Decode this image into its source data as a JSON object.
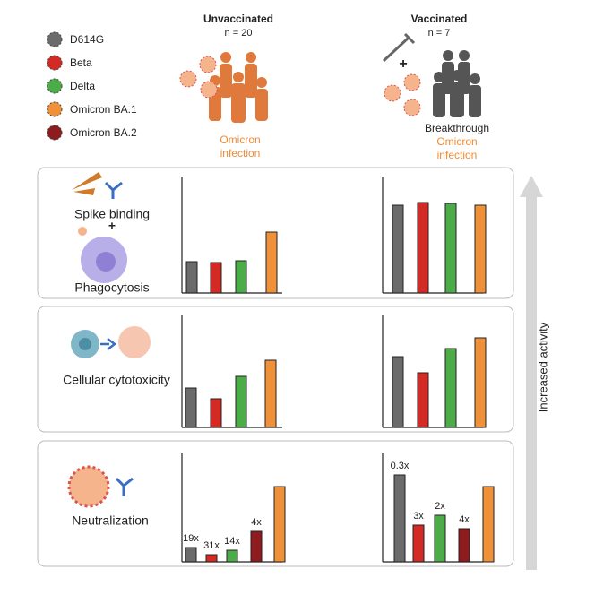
{
  "legend": [
    {
      "label": "D614G",
      "color": "#6b6b6b"
    },
    {
      "label": "Beta",
      "color": "#d42a25"
    },
    {
      "label": "Delta",
      "color": "#4cad48"
    },
    {
      "label": "Omicron BA.1",
      "color": "#f0913a"
    },
    {
      "label": "Omicron BA.2",
      "color": "#8e1b1e"
    }
  ],
  "groups": {
    "unvaccinated": {
      "title": "Unvaccinated",
      "n": "n = 20",
      "infection": [
        "Omicron",
        "infection"
      ]
    },
    "vaccinated": {
      "title": "Vaccinated",
      "n": "n = 7",
      "plus": "+",
      "breakthrough": "Breakthrough",
      "infection": [
        "Omicron",
        "infection"
      ]
    }
  },
  "arrow_label": "Increased activity",
  "panels": [
    {
      "label": [
        "Spike binding",
        "+",
        "Phagocytosis"
      ],
      "charts": [
        {
          "values": [
            35,
            34,
            36,
            68
          ],
          "colors": [
            "#6b6b6b",
            "#d42a25",
            "#4cad48",
            "#f0913a"
          ]
        },
        {
          "values": [
            98,
            101,
            100,
            98
          ],
          "colors": [
            "#6b6b6b",
            "#d42a25",
            "#4cad48",
            "#f0913a"
          ]
        }
      ]
    },
    {
      "label": [
        "Cellular cytotoxicity"
      ],
      "charts": [
        {
          "values": [
            44,
            32,
            57,
            75
          ],
          "colors": [
            "#6b6b6b",
            "#d42a25",
            "#4cad48",
            "#f0913a"
          ]
        },
        {
          "values": [
            79,
            61,
            88,
            100
          ],
          "colors": [
            "#6b6b6b",
            "#d42a25",
            "#4cad48",
            "#f0913a"
          ]
        }
      ]
    },
    {
      "label": [
        "Neutralization"
      ],
      "charts": [
        {
          "values": [
            16,
            8,
            13,
            34,
            84
          ],
          "colors": [
            "#6b6b6b",
            "#d42a25",
            "#4cad48",
            "#8e1b1e",
            "#f0913a"
          ],
          "value_labels": [
            "19x",
            "31x",
            "14x",
            "4x",
            null
          ]
        },
        {
          "values": [
            97,
            41,
            52,
            37,
            84
          ],
          "colors": [
            "#6b6b6b",
            "#d42a25",
            "#4cad48",
            "#8e1b1e",
            "#f0913a"
          ],
          "value_labels": [
            "0.3x",
            "3x",
            "2x",
            "4x",
            null
          ]
        }
      ]
    }
  ]
}
